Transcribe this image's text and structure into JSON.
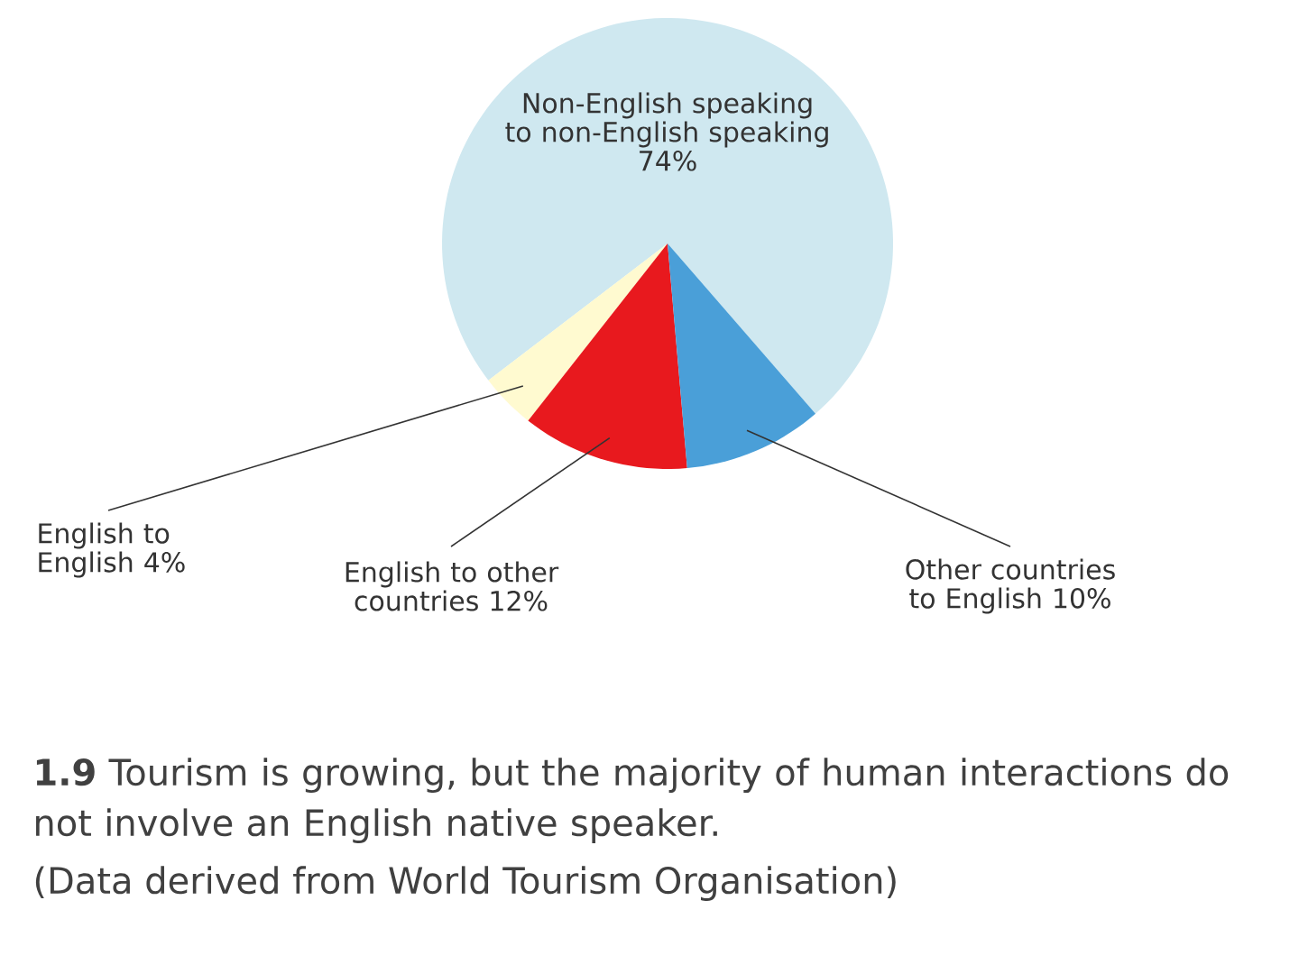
{
  "chart_data": {
    "type": "pie",
    "title": "**1.9** Tourism is growing, but the majority of human interactions do not involve an English native speaker.",
    "annotations": [
      "(Data derived from World Tourism Organisation)"
    ],
    "categories": [
      "Non-English speaking to non-English speaking",
      "English to English",
      "English to other countries",
      "Other countries to English"
    ],
    "values": [
      74,
      4,
      12,
      10
    ],
    "value_labels": [
      "74%",
      "4%",
      "12%",
      "10%"
    ],
    "colors": [
      "#cfe8f0",
      "#fffad0",
      "#e8191e",
      "#4a9fd8"
    ]
  }
}
